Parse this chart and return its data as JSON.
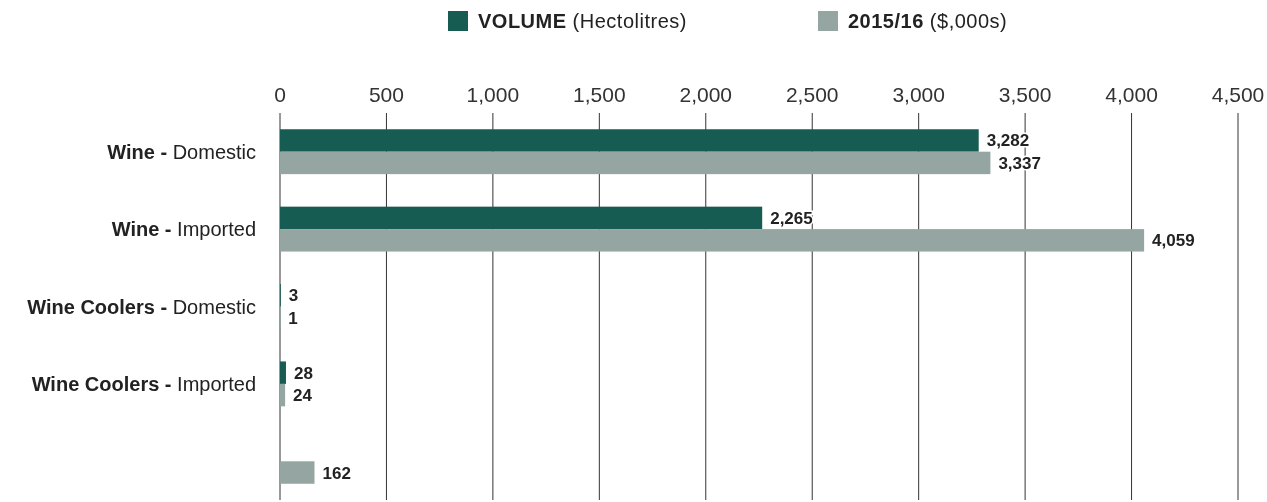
{
  "chart_data": {
    "type": "bar",
    "orientation": "horizontal",
    "categories": [
      "Wine - Domestic",
      "Wine - Imported",
      "Wine Coolers - Domestic",
      "Wine Coolers - Imported",
      null
    ],
    "series": [
      {
        "name": "VOLUME (Hectolitres)",
        "color": "#165c52",
        "values": [
          3282,
          2265,
          3,
          28,
          null
        ],
        "value_labels": [
          "3,282",
          "2,265",
          "3",
          "28",
          null
        ]
      },
      {
        "name": "2015/16 ($,000s)",
        "color": "#95a5a2",
        "values": [
          3337,
          4059,
          1,
          24,
          162
        ],
        "value_labels": [
          "3,337",
          "4,059",
          "1",
          "24",
          "162"
        ]
      }
    ],
    "xlim": [
      0,
      4500
    ],
    "xticks": [
      0,
      500,
      {
        "value": 1000,
        "label": "1,000"
      },
      {
        "value": 1500,
        "label": "1,500"
      },
      {
        "value": 2000,
        "label": "2,000"
      },
      {
        "value": 2500,
        "label": "2,500"
      },
      {
        "value": 3000,
        "label": "3,000"
      },
      {
        "value": 3500,
        "label": "3,500"
      },
      {
        "value": 4000,
        "label": "4,000"
      },
      {
        "value": 4500,
        "label": "4,500"
      }
    ],
    "grid": "x",
    "legend": "top"
  }
}
